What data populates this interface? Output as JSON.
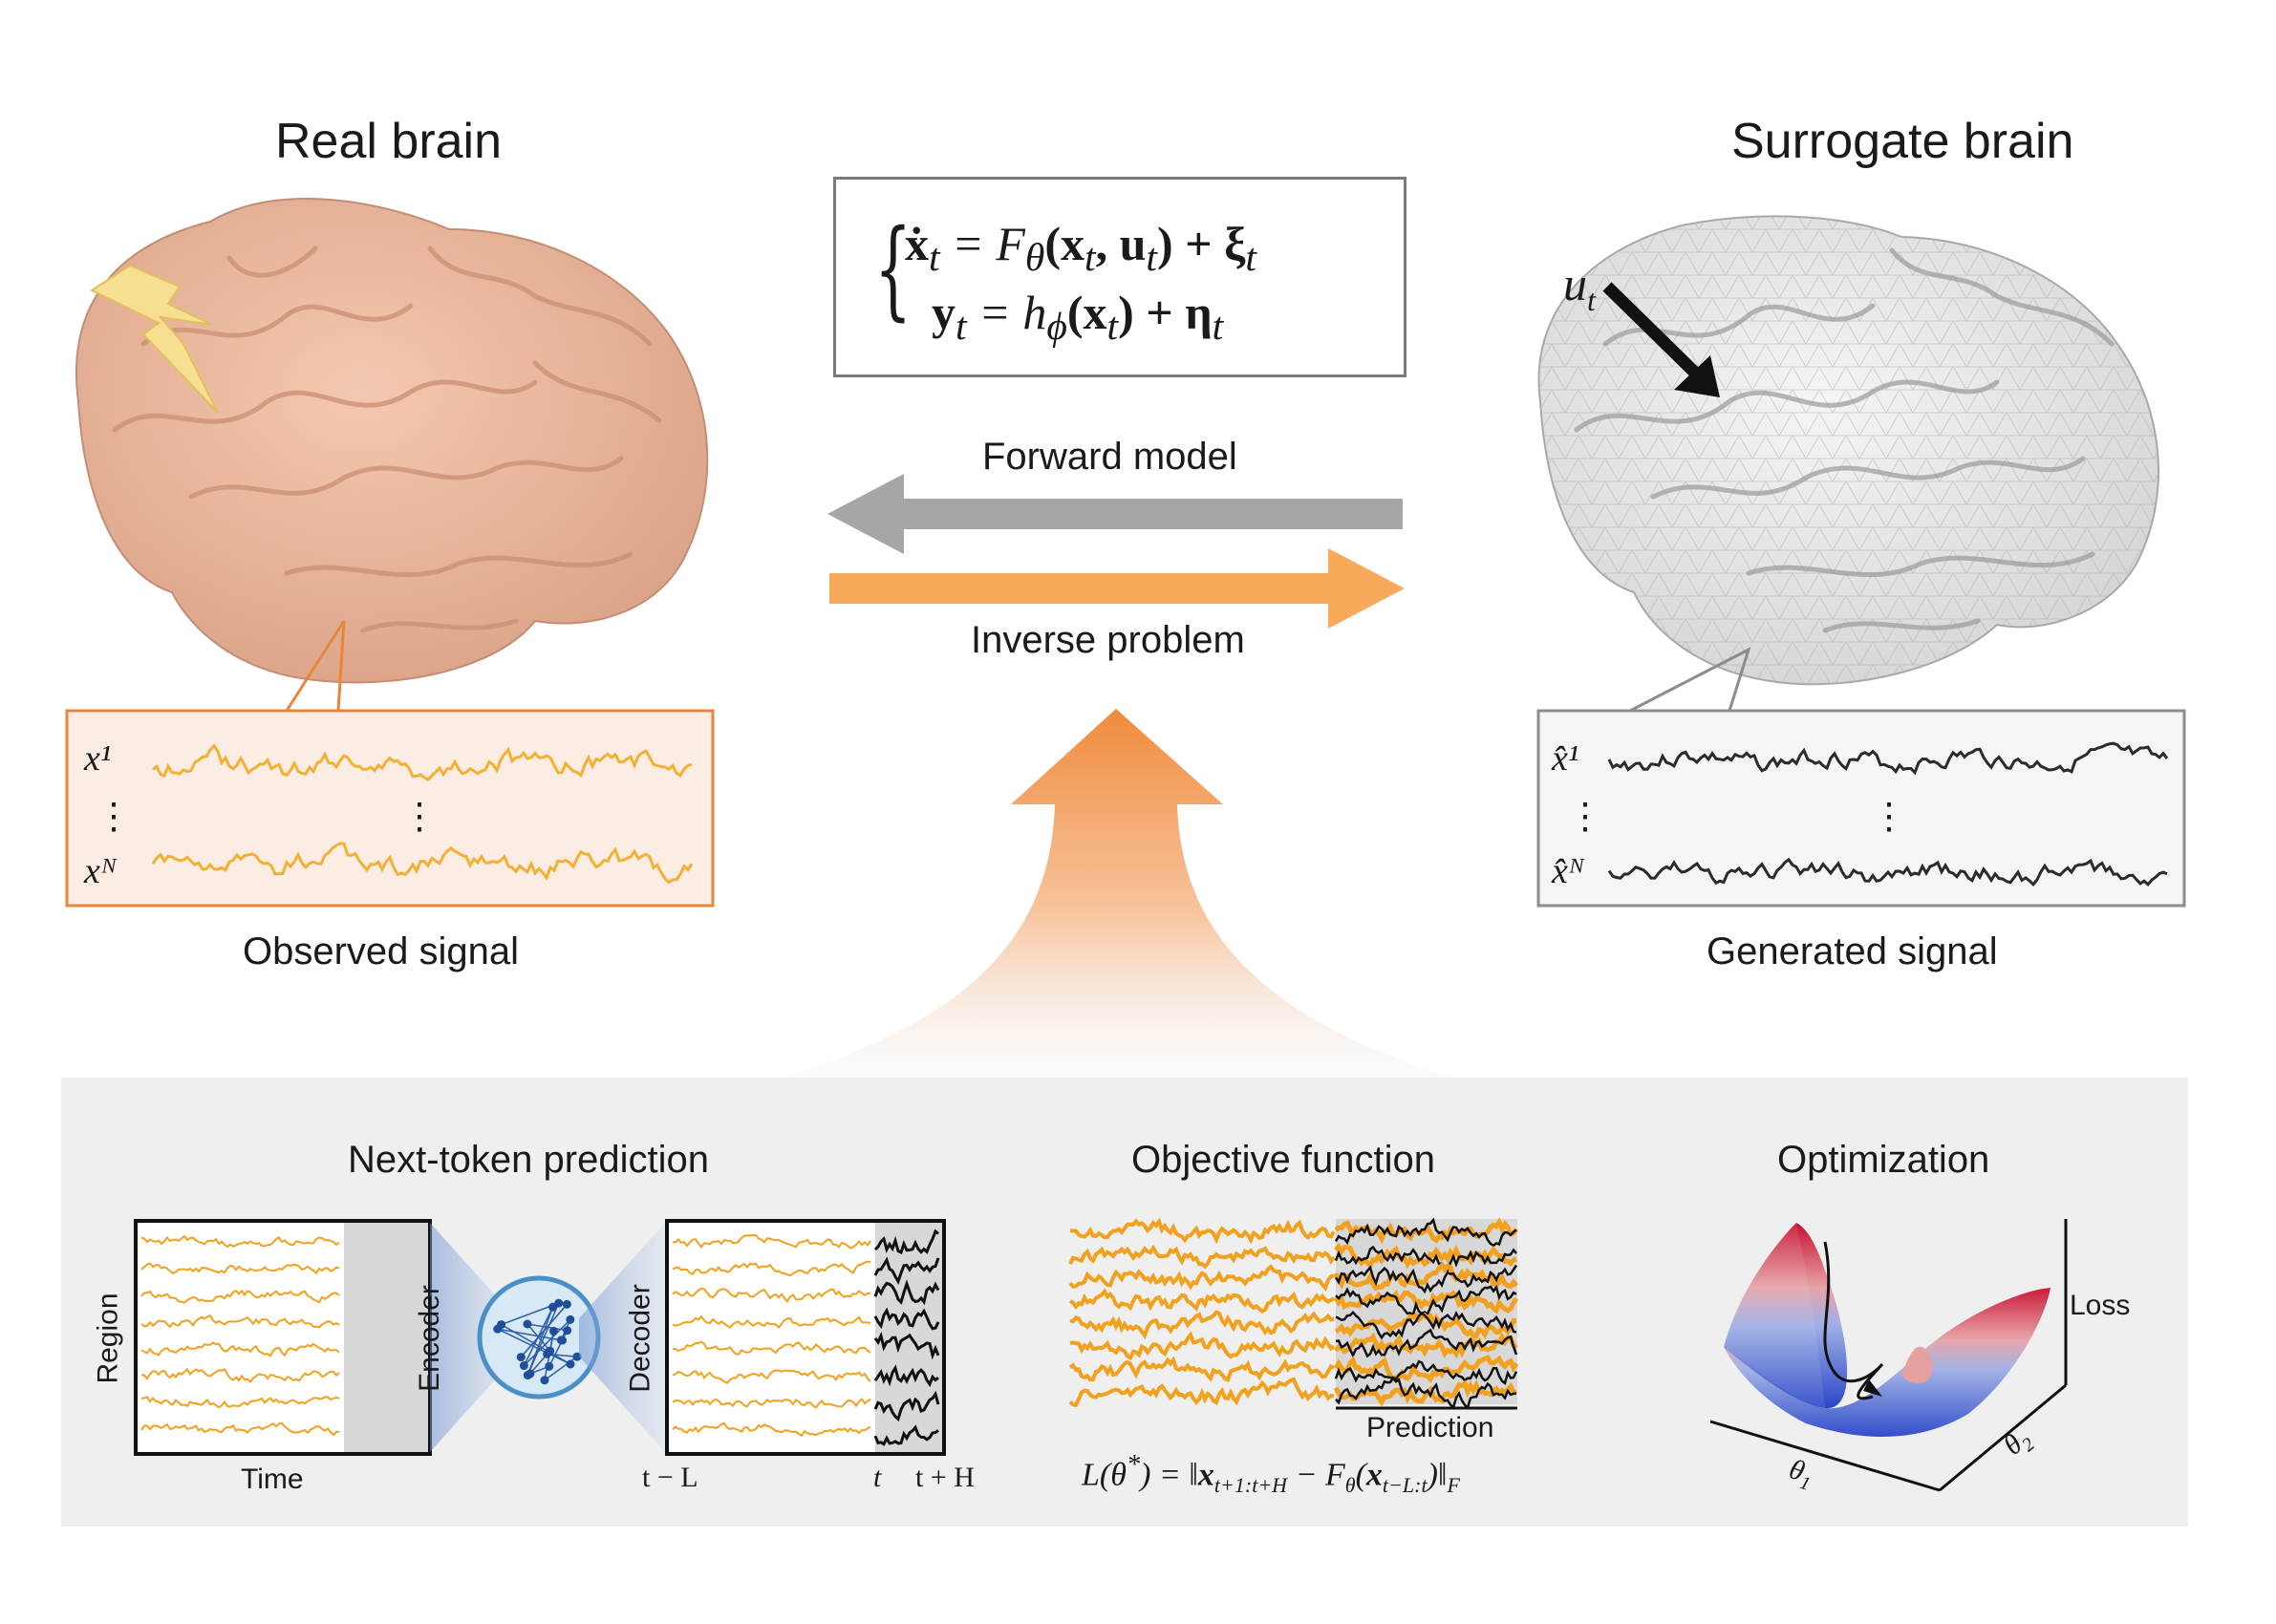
{
  "titles": {
    "real_brain": "Real brain",
    "surrogate_brain": "Surrogate brain"
  },
  "equation": {
    "line1": "ẋt = Fθ(xt, ut) + ξt",
    "line2": "yt = hϕ(xt) + ηt",
    "line1_parts": [
      "ẋ",
      "t",
      " = F",
      "θ",
      "(x",
      "t",
      ", u",
      "t",
      ") + ξ",
      "t"
    ],
    "line2_parts": [
      "y",
      "t",
      " = h",
      "ϕ",
      "(x",
      "t",
      ") + η",
      "t"
    ]
  },
  "arrows": {
    "forward_label": "Forward model",
    "inverse_label": "Inverse problem",
    "forward_color": "#a6a6a6",
    "inverse_color": "#f9a95a"
  },
  "observed": {
    "caption": "Observed signal",
    "label_first": "x¹",
    "label_last": "xᴺ",
    "dots": "⋮",
    "box_color": "#e8853a",
    "signal_color": "#f2b134"
  },
  "generated": {
    "caption": "Generated signal",
    "label_first": "x̂¹",
    "label_last": "x̂ᴺ",
    "dots": "⋮",
    "box_color": "#8c8c8c",
    "signal_color": "#2b2b2b"
  },
  "stimulus_label": "ut",
  "bottom": {
    "next_token": {
      "title": "Next-token prediction",
      "region": "Region",
      "time": "Time",
      "encoder": "Encoder",
      "decoder": "Decoder",
      "t_minus_L": "t − L",
      "t": "t",
      "t_plus_H": "t + H"
    },
    "objective": {
      "title": "Objective function",
      "prediction": "Prediction",
      "formula": "L(θ*) = ‖xt+1:t+H − Fθ(xt−L:t)‖F"
    },
    "optimization": {
      "title": "Optimization",
      "loss": "Loss",
      "theta1": "θ1",
      "theta2": "θ2"
    }
  },
  "colors": {
    "brain_real": "#e8b49a",
    "brain_real_dark": "#c98f74",
    "brain_surrogate": "#e9e9e9",
    "panel_bg": "#efefef",
    "orange": "#f2a11f",
    "black": "#111111"
  },
  "icons": [
    "lightning-icon",
    "stimulus-arrow-icon",
    "neural-network-icon",
    "loss-surface-icon"
  ]
}
